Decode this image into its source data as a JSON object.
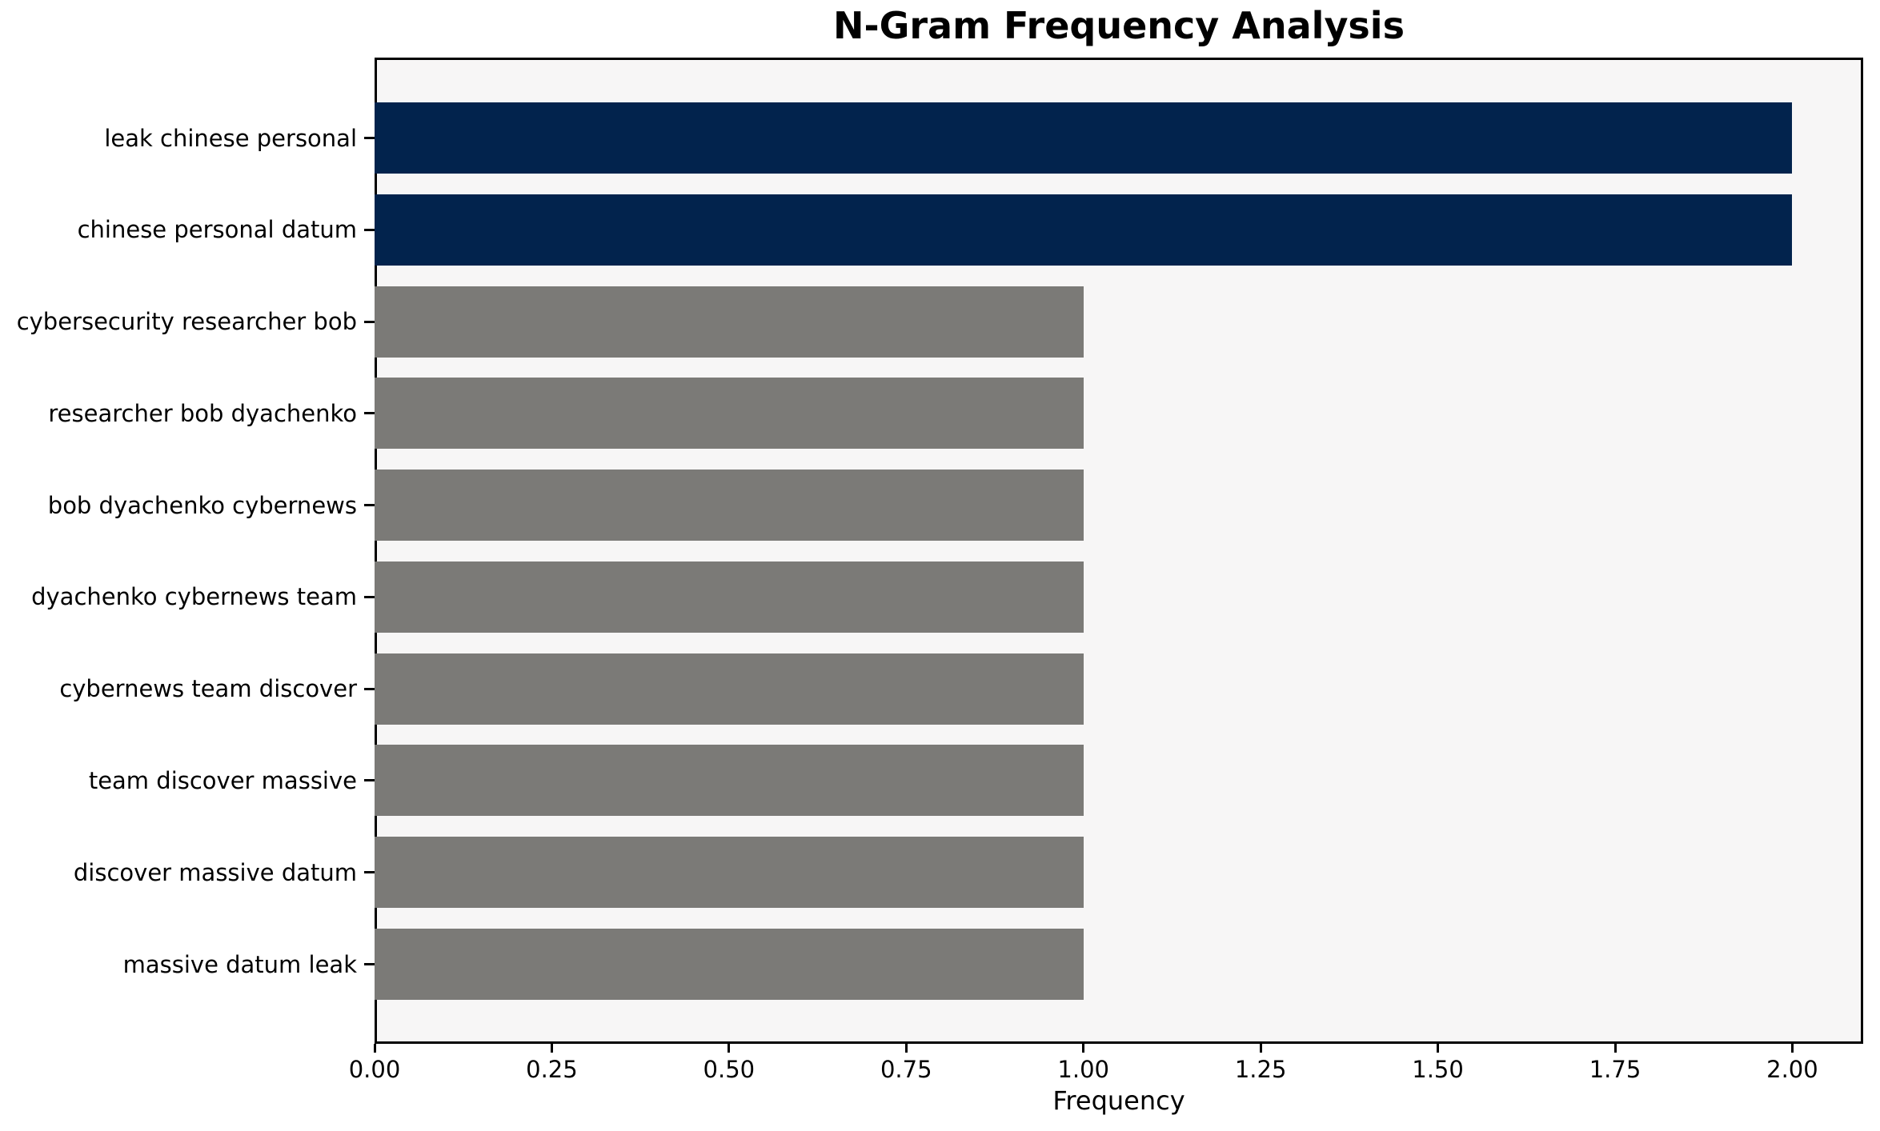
{
  "chart_data": {
    "type": "bar",
    "orientation": "horizontal",
    "title": "N-Gram Frequency Analysis",
    "xlabel": "Frequency",
    "ylabel": "",
    "categories": [
      "leak chinese personal",
      "chinese personal datum",
      "cybersecurity researcher bob",
      "researcher bob dyachenko",
      "bob dyachenko cybernews",
      "dyachenko cybernews team",
      "cybernews team discover",
      "team discover massive",
      "discover massive datum",
      "massive datum leak"
    ],
    "values": [
      2,
      2,
      1,
      1,
      1,
      1,
      1,
      1,
      1,
      1
    ],
    "xlim": [
      0,
      2.1
    ],
    "xticks": [
      0,
      0.25,
      0.5,
      0.75,
      1.0,
      1.25,
      1.5,
      1.75,
      2.0
    ],
    "xtick_labels": [
      "0.00",
      "0.25",
      "0.50",
      "0.75",
      "1.00",
      "1.25",
      "1.50",
      "1.75",
      "2.00"
    ],
    "grid": false,
    "legend_position": "none",
    "colors": {
      "bar_highlight": "#02234d",
      "bar_default": "#7b7a77",
      "axes_background": "#f7f6f6",
      "figure_background": "#ffffff",
      "spine": "#000000",
      "text": "#000000"
    },
    "highlight_value": 2
  }
}
